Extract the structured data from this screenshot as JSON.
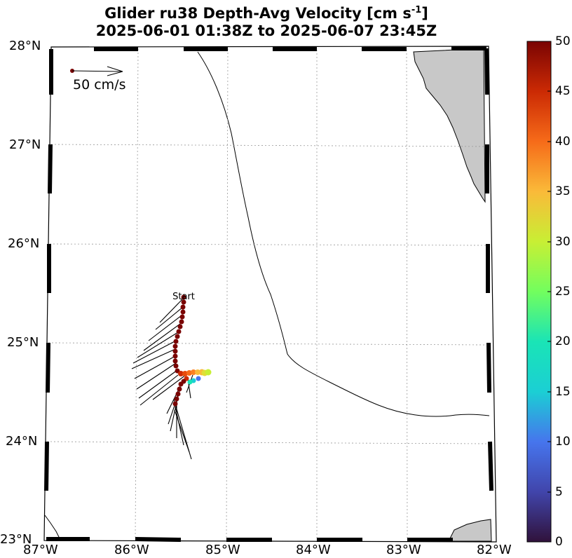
{
  "title": {
    "line1": "Glider ru38 Depth-Avg Velocity [cm s",
    "line1_exponent": "-1",
    "line1_suffix": "]",
    "line2": "2025-06-01 01:38Z to 2025-06-07 23:45Z"
  },
  "map": {
    "lat_labels": [
      "28°N",
      "27°N",
      "26°N",
      "25°N",
      "24°N",
      "23°N"
    ],
    "lon_labels": [
      "87°W",
      "86°W",
      "85°W",
      "84°W",
      "83°W",
      "82°W"
    ],
    "lat_range": [
      23,
      28
    ],
    "lon_range": [
      -87,
      -82
    ],
    "land_color": "#c8c8c8",
    "start_label": "Start",
    "scale_label": "50 cm/s",
    "grid": "dotted"
  },
  "colorbar": {
    "ticks": [
      "50",
      "45",
      "40",
      "35",
      "30",
      "25",
      "20",
      "15",
      "10",
      "5",
      "0"
    ],
    "range": [
      0,
      50
    ],
    "colormap": "jet/turbo"
  }
}
